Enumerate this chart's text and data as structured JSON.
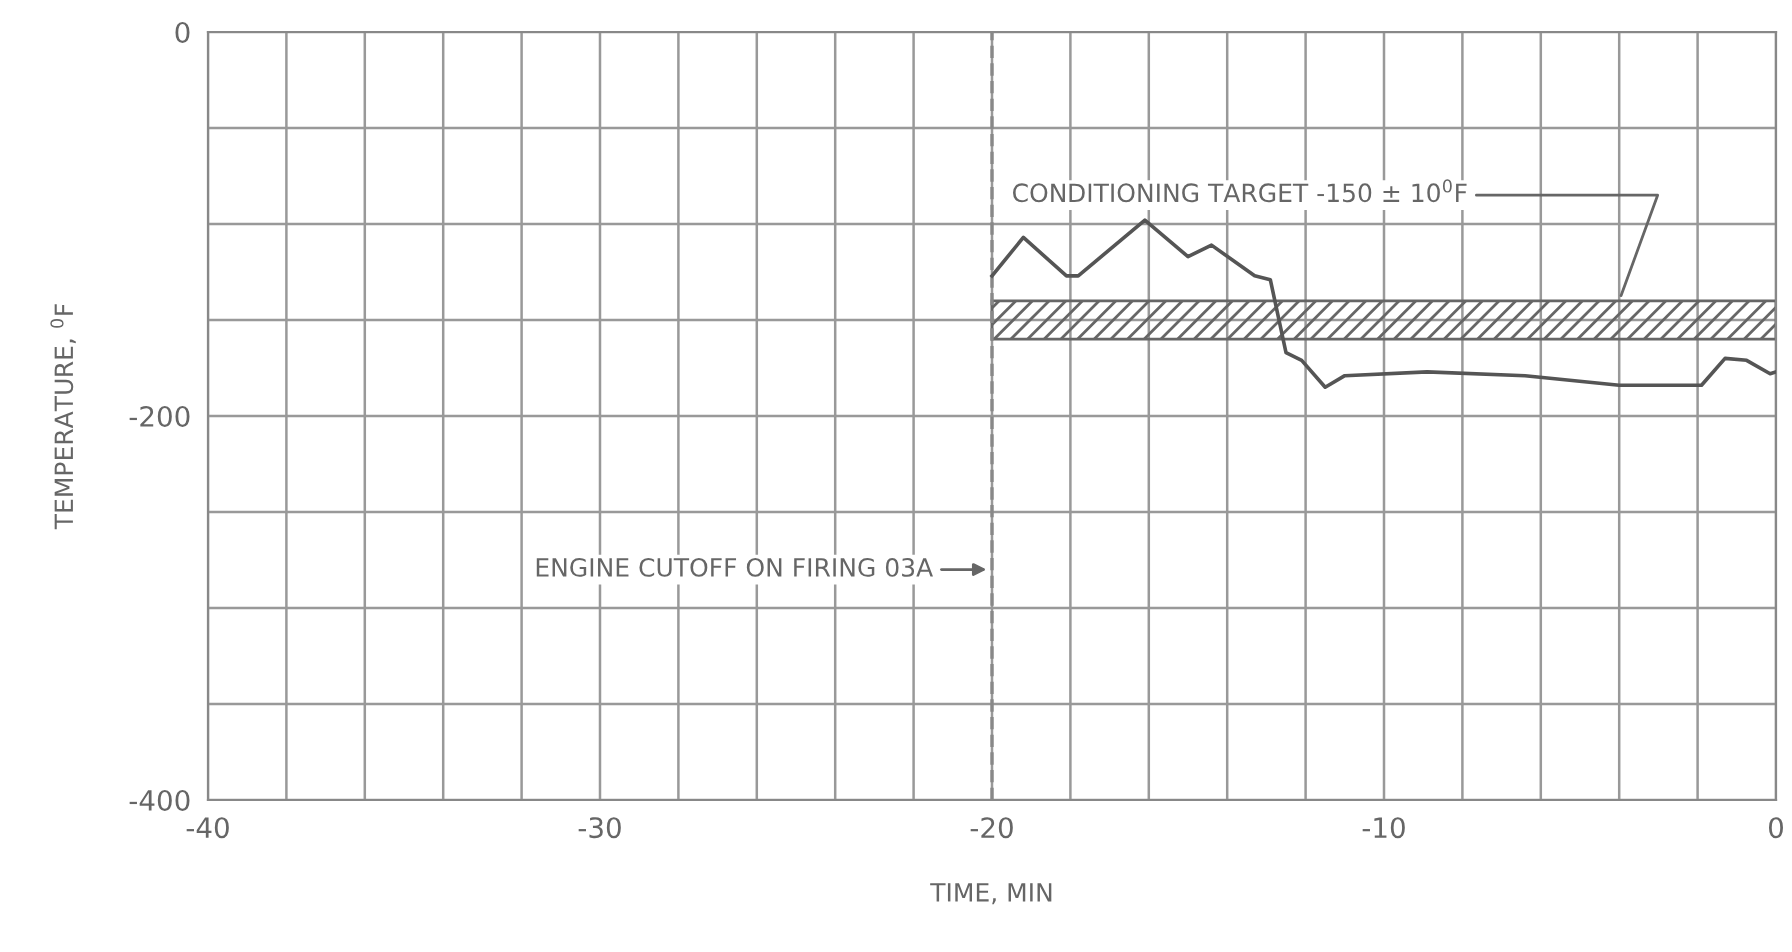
{
  "chart_data": {
    "type": "line",
    "xlabel": "TIME, MIN",
    "ylabel": "TEMPERATURE, $^{0}$F",
    "xlim": [
      -40,
      0
    ],
    "ylim": [
      -400,
      0
    ],
    "xticks": [
      -40,
      {
        "value": -38,
        "label": null
      },
      {
        "value": -36,
        "label": null
      },
      {
        "value": -34,
        "label": null
      },
      {
        "value": -32,
        "label": null
      },
      -30,
      {
        "value": -28,
        "label": null
      },
      {
        "value": -26,
        "label": null
      },
      {
        "value": -24,
        "label": null
      },
      {
        "value": -22,
        "label": null
      },
      -20,
      {
        "value": -18,
        "label": null
      },
      {
        "value": -16,
        "label": null
      },
      {
        "value": -14,
        "label": null
      },
      {
        "value": -12,
        "label": null
      },
      -10,
      {
        "value": -8,
        "label": null
      },
      {
        "value": -6,
        "label": null
      },
      {
        "value": -4,
        "label": null
      },
      {
        "value": -2,
        "label": null
      },
      0
    ],
    "yticks": [
      -400,
      {
        "value": -350,
        "label": null
      },
      {
        "value": -300,
        "label": null
      },
      {
        "value": -250,
        "label": null
      },
      -200,
      {
        "value": -150,
        "label": null
      },
      {
        "value": -100,
        "label": null
      },
      {
        "value": -50,
        "label": null
      },
      0
    ],
    "grid": true,
    "series": [
      {
        "color": "#555555",
        "x": [
          -20,
          -19.2,
          -18.1,
          -17.8,
          -16.1,
          -15,
          -14.4,
          -13.3,
          -12.9,
          -12.5,
          -12.1,
          -11.5,
          -11,
          -8.9,
          -6.4,
          -4,
          -1.9,
          -1.3,
          -0.75,
          -0.15,
          0
        ],
        "values": [
          -127,
          -107,
          -127,
          -127,
          -98,
          -117,
          -111,
          -127,
          -129,
          -167,
          -171,
          -185,
          -179,
          -177,
          -179,
          -184,
          -184,
          -170,
          -171,
          -178,
          -177
        ]
      }
    ],
    "ref_lines": [
      {
        "axis": "x",
        "value": -20,
        "label": "ENGINE CUTOFF ON FIRING 03A",
        "line_style": "dashed",
        "color": "#888888"
      }
    ],
    "bands": [
      {
        "axis": "y",
        "from": -160,
        "to": -140,
        "label": "CONDITIONING TARGET -150 ± 10$^{0}$F",
        "color": "#666666"
      }
    ]
  }
}
